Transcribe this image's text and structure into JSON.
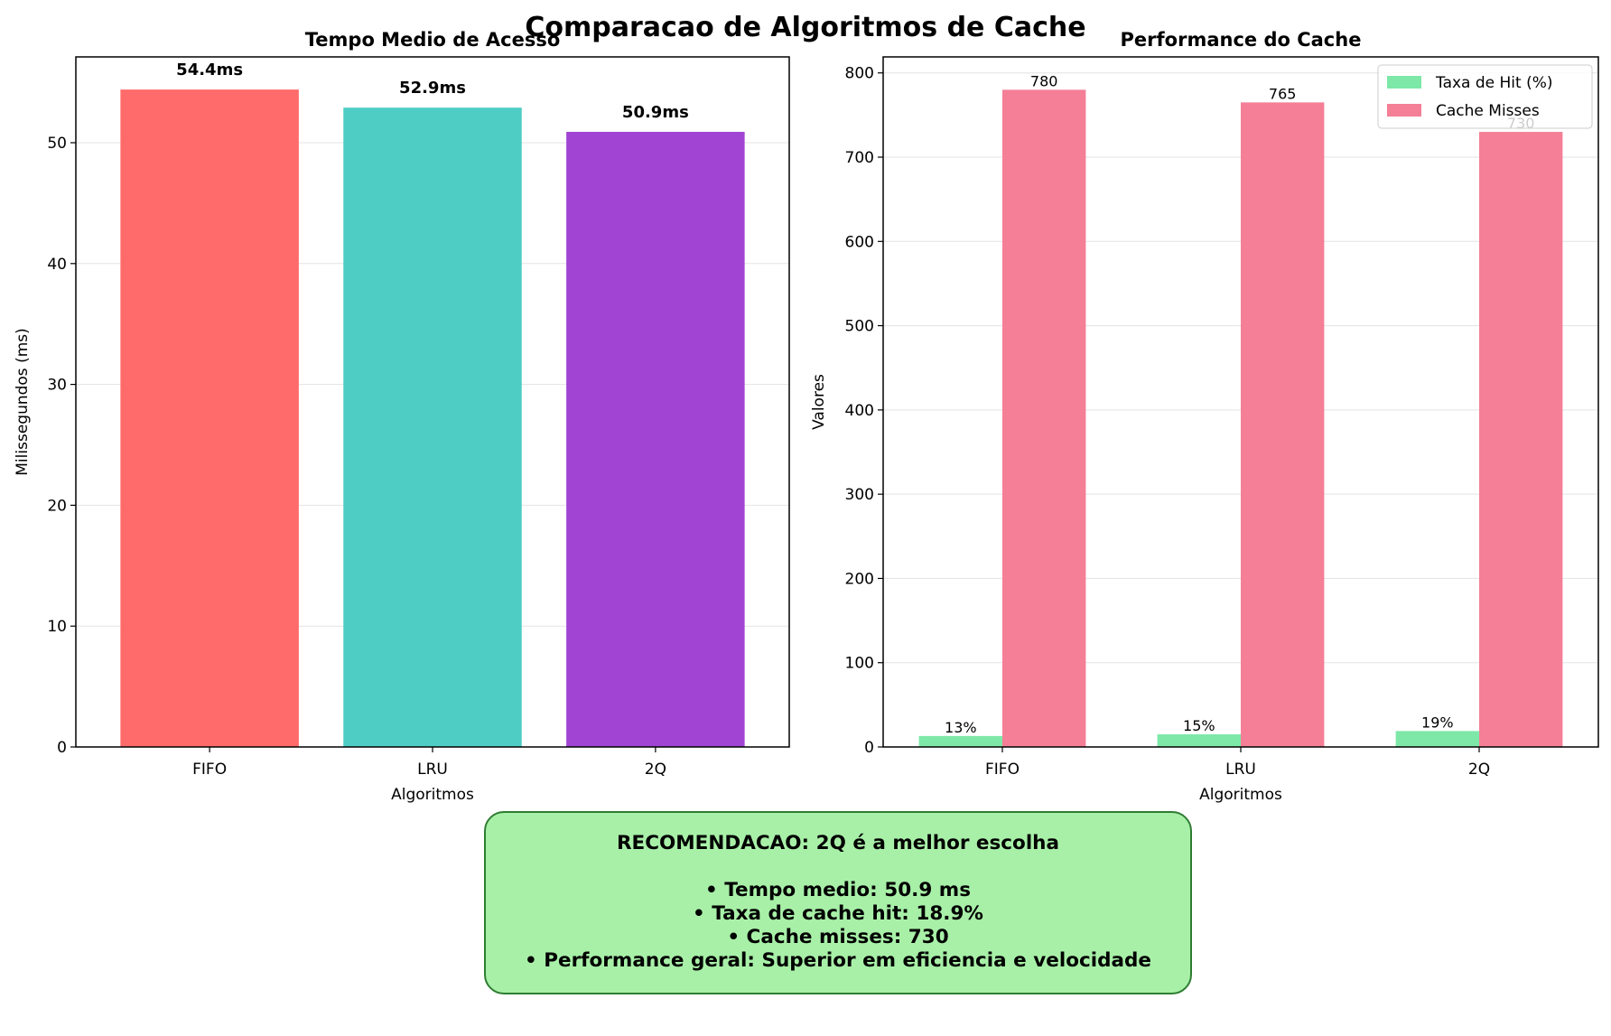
{
  "figure": {
    "suptitle": "Comparacao de Algoritmos de Cache"
  },
  "chart_data": [
    {
      "type": "bar",
      "title": "Tempo Medio de Acesso",
      "xlabel": "Algoritmos",
      "ylabel": "Milissegundos (ms)",
      "categories": [
        "FIFO",
        "LRU",
        "2Q"
      ],
      "values": [
        54.4,
        52.9,
        50.9
      ],
      "value_labels": [
        "54.4ms",
        "52.9ms",
        "50.9ms"
      ],
      "colors": [
        "#ff6b6b",
        "#4ecdc4",
        "#a144d3"
      ],
      "ylim": [
        0,
        57.1
      ],
      "yticks": [
        0,
        10,
        20,
        30,
        40,
        50
      ],
      "grid": "y"
    },
    {
      "type": "bar",
      "title": "Performance do Cache",
      "xlabel": "Algoritmos",
      "ylabel": "Valores",
      "categories": [
        "FIFO",
        "LRU",
        "2Q"
      ],
      "series": [
        {
          "name": "Taxa de Hit (%)",
          "values": [
            13,
            15,
            18.9
          ],
          "value_labels": [
            "13%",
            "15%",
            "19%"
          ],
          "color": "#7ee8a8"
        },
        {
          "name": "Cache Misses",
          "values": [
            780,
            765,
            730
          ],
          "value_labels": [
            "780",
            "765",
            "730"
          ],
          "color": "#f47f97"
        }
      ],
      "ylim": [
        0,
        819
      ],
      "yticks": [
        0,
        100,
        200,
        300,
        400,
        500,
        600,
        700,
        800
      ],
      "grid": "y",
      "legend": "top-right"
    }
  ],
  "recommendation": {
    "title": "RECOMENDACAO: 2Q é a melhor escolha",
    "lines": [
      "• Tempo medio: 50.9 ms",
      "• Taxa de cache hit: 18.9%",
      "• Cache misses: 730",
      "• Performance geral: Superior em eficiencia e velocidade"
    ],
    "background": "#a8f0a8",
    "border": "#2e7d32"
  }
}
